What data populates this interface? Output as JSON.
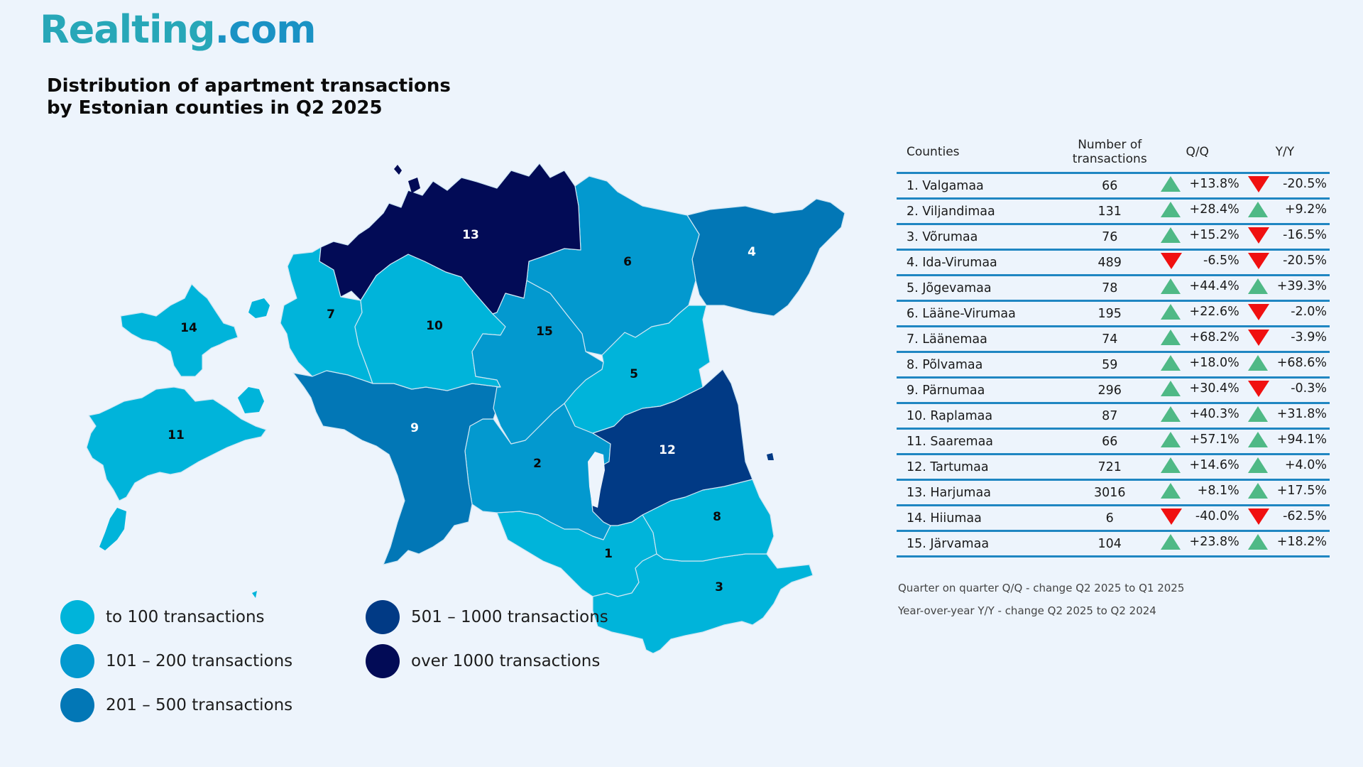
{
  "brand": {
    "logo_part1": "Realting",
    "logo_part2": ".com"
  },
  "title": {
    "line1": "Distribution  of  apartment  transactions",
    "line2": "by Estonian counties in Q2 2025"
  },
  "colors": {
    "to100": "#00b4da",
    "r101_200": "#0399cf",
    "r201_500": "#0277b6",
    "r501_1000": "#013a85",
    "over1000": "#020b56",
    "arrow_up": "#4fb986",
    "arrow_down": "#f01010",
    "table_line": "#1f86c2"
  },
  "legend": [
    {
      "label": "to 100 transactions",
      "color_key": "to100"
    },
    {
      "label": "101 – 200 transactions",
      "color_key": "r101_200"
    },
    {
      "label": "201 – 500 transactions",
      "color_key": "r201_500"
    },
    {
      "label": "501 – 1000 transactions",
      "color_key": "r501_1000"
    },
    {
      "label": "over  1000 transactions",
      "color_key": "over1000"
    }
  ],
  "table": {
    "headers": {
      "counties": "Counties",
      "transactions": "Number of\ntransactions",
      "qq": "Q/Q",
      "yy": "Y/Y"
    },
    "rows": [
      {
        "county": "1. Valgamaa",
        "transactions": "66",
        "qq": "+13.8%",
        "qq_dir": "up",
        "yy": "-20.5%",
        "yy_dir": "down"
      },
      {
        "county": "2. Viljandimaa",
        "transactions": "131",
        "qq": "+28.4%",
        "qq_dir": "up",
        "yy": "+9.2%",
        "yy_dir": "up"
      },
      {
        "county": "3. Võrumaa",
        "transactions": "76",
        "qq": "+15.2%",
        "qq_dir": "up",
        "yy": "-16.5%",
        "yy_dir": "down"
      },
      {
        "county": "4. Ida-Virumaa",
        "transactions": "489",
        "qq": "-6.5%",
        "qq_dir": "down",
        "yy": "-20.5%",
        "yy_dir": "down"
      },
      {
        "county": "5. Jõgevamaa",
        "transactions": "78",
        "qq": "+44.4%",
        "qq_dir": "up",
        "yy": "+39.3%",
        "yy_dir": "up"
      },
      {
        "county": "6. Lääne-Virumaa",
        "transactions": "195",
        "qq": "+22.6%",
        "qq_dir": "up",
        "yy": "-2.0%",
        "yy_dir": "down"
      },
      {
        "county": "7. Läänemaa",
        "transactions": "74",
        "qq": "+68.2%",
        "qq_dir": "up",
        "yy": "-3.9%",
        "yy_dir": "down"
      },
      {
        "county": "8. Põlvamaa",
        "transactions": "59",
        "qq": "+18.0%",
        "qq_dir": "up",
        "yy": "+68.6%",
        "yy_dir": "up"
      },
      {
        "county": "9. Pärnumaa",
        "transactions": "296",
        "qq": "+30.4%",
        "qq_dir": "up",
        "yy": "-0.3%",
        "yy_dir": "down"
      },
      {
        "county": "10. Raplamaa",
        "transactions": "87",
        "qq": "+40.3%",
        "qq_dir": "up",
        "yy": "+31.8%",
        "yy_dir": "up"
      },
      {
        "county": "11. Saaremaa",
        "transactions": "66",
        "qq": "+57.1%",
        "qq_dir": "up",
        "yy": "+94.1%",
        "yy_dir": "up"
      },
      {
        "county": "12. Tartumaa",
        "transactions": "721",
        "qq": "+14.6%",
        "qq_dir": "up",
        "yy": "+4.0%",
        "yy_dir": "up"
      },
      {
        "county": "13. Harjumaa",
        "transactions": "3016",
        "qq": "+8.1%",
        "qq_dir": "up",
        "yy": "+17.5%",
        "yy_dir": "up"
      },
      {
        "county": "14. Hiiumaa",
        "transactions": "6",
        "qq": "-40.0%",
        "qq_dir": "down",
        "yy": "-62.5%",
        "yy_dir": "down"
      },
      {
        "county": "15. Järvamaa",
        "transactions": "104",
        "qq": "+23.8%",
        "qq_dir": "up",
        "yy": "+18.2%",
        "yy_dir": "up"
      }
    ]
  },
  "notes": {
    "qq": "Quarter on quarter Q/Q  - change Q2 2025 to Q1 2025",
    "yy": "Year-over-year Y/Y - change Q2 2025 to Q2 2024"
  },
  "map_labels": [
    {
      "id": "1",
      "color_key": "to100",
      "text_color": "#0a0a0a"
    },
    {
      "id": "2",
      "color_key": "r101_200",
      "text_color": "#0a0a0a"
    },
    {
      "id": "3",
      "color_key": "to100",
      "text_color": "#0a0a0a"
    },
    {
      "id": "4",
      "color_key": "r201_500",
      "text_color": "#ffffff"
    },
    {
      "id": "5",
      "color_key": "to100",
      "text_color": "#0a0a0a"
    },
    {
      "id": "6",
      "color_key": "r101_200",
      "text_color": "#0a0a0a"
    },
    {
      "id": "7",
      "color_key": "to100",
      "text_color": "#0a0a0a"
    },
    {
      "id": "8",
      "color_key": "to100",
      "text_color": "#0a0a0a"
    },
    {
      "id": "9",
      "color_key": "r201_500",
      "text_color": "#ffffff"
    },
    {
      "id": "10",
      "color_key": "to100",
      "text_color": "#0a0a0a"
    },
    {
      "id": "11",
      "color_key": "to100",
      "text_color": "#0a0a0a"
    },
    {
      "id": "12",
      "color_key": "r501_1000",
      "text_color": "#ffffff"
    },
    {
      "id": "13",
      "color_key": "over1000",
      "text_color": "#ffffff"
    },
    {
      "id": "14",
      "color_key": "to100",
      "text_color": "#0a0a0a"
    },
    {
      "id": "15",
      "color_key": "r101_200",
      "text_color": "#0a0a0a"
    }
  ]
}
